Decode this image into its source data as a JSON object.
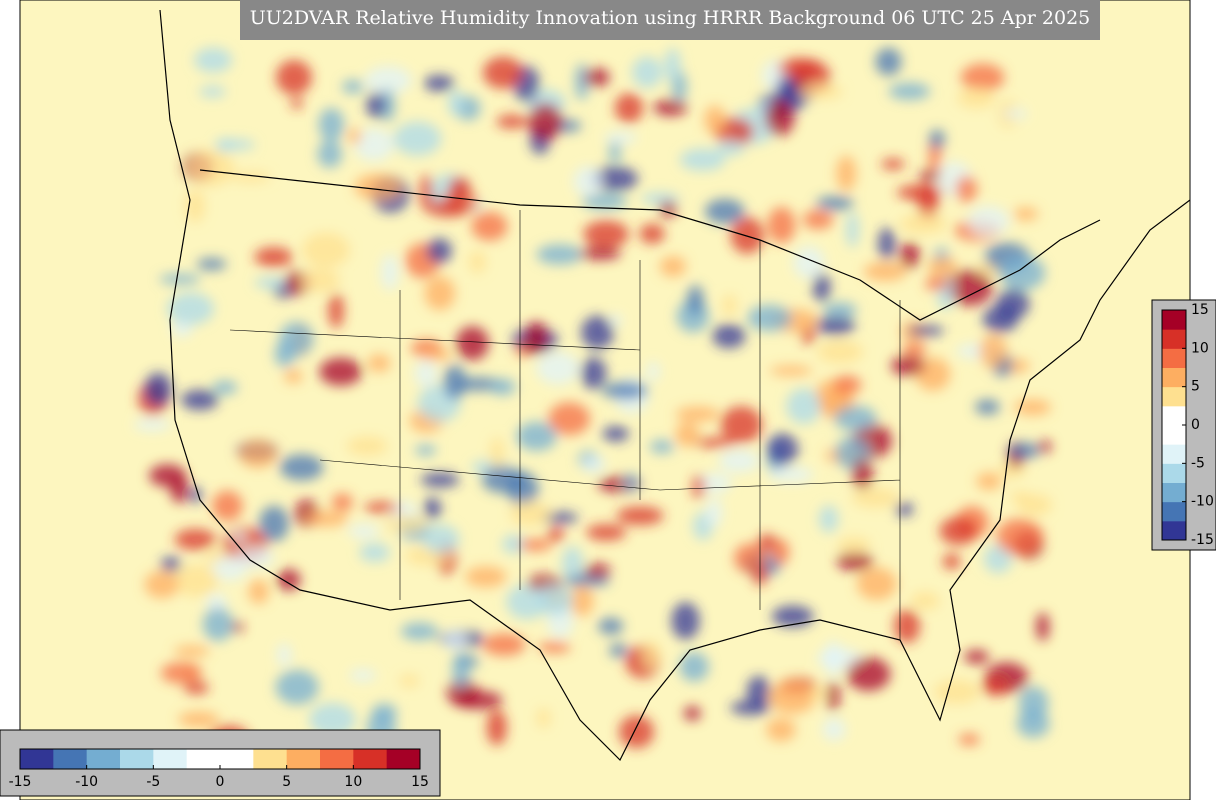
{
  "title": "UU2DVAR Relative Humidity Innovation using HRRR Background 06 UTC 25 Apr 2025",
  "colormap": [
    "#313695",
    "#4575b4",
    "#74add1",
    "#abd9e9",
    "#e0f3f8",
    "#ffffff",
    "#ffffff",
    "#fee090",
    "#fdae61",
    "#f46d43",
    "#d73027",
    "#a50026"
  ],
  "horizontal_colorbar": {
    "lim": [
      -15,
      15
    ],
    "ticks": [
      -15,
      -10,
      -5,
      0,
      5,
      10,
      15
    ]
  },
  "vertical_colorbar": {
    "lim": [
      -15,
      15
    ],
    "ticks": [
      15,
      10,
      5,
      0,
      -5,
      -10,
      -15
    ]
  }
}
